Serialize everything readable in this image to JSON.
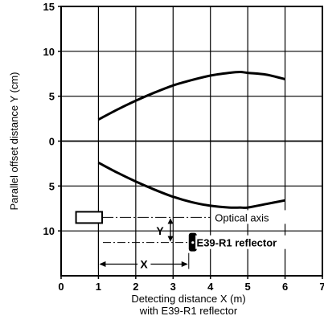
{
  "chart_data": {
    "type": "line",
    "xlabel_line1": "Detecting distance X (m)",
    "xlabel_line2": "with E39-R1 reflector",
    "ylabel": "Parallel offset distance Y (cm)",
    "xlim": [
      0,
      7
    ],
    "ylim": [
      -15,
      15
    ],
    "grid": true,
    "x_ticks": [
      "0",
      "1",
      "2",
      "3",
      "4",
      "5",
      "6",
      "7"
    ],
    "y_tick_labels": [
      "15",
      "10",
      "5",
      "0",
      "5",
      "10"
    ],
    "y_tick_values": [
      15,
      10,
      5,
      0,
      -5,
      -10
    ],
    "series": [
      {
        "x": [
          1.0,
          1.5,
          2.0,
          2.5,
          3.0,
          3.5,
          4.0,
          4.5,
          4.8,
          5.0,
          5.5,
          6.0
        ],
        "y": [
          2.4,
          3.5,
          4.5,
          5.4,
          6.2,
          6.8,
          7.3,
          7.6,
          7.7,
          7.6,
          7.4,
          6.9
        ]
      },
      {
        "x": [
          1.0,
          1.5,
          2.0,
          2.5,
          3.0,
          3.5,
          4.0,
          4.5,
          4.8,
          5.0,
          5.5,
          6.0
        ],
        "y": [
          -2.4,
          -3.5,
          -4.5,
          -5.4,
          -6.2,
          -6.8,
          -7.2,
          -7.4,
          -7.4,
          -7.4,
          -7.0,
          -6.6
        ]
      }
    ],
    "annotations": {
      "optical_axis": "Optical axis",
      "reflector": "E39-R1 reflector",
      "x_marker": "X",
      "y_marker": "Y"
    }
  }
}
